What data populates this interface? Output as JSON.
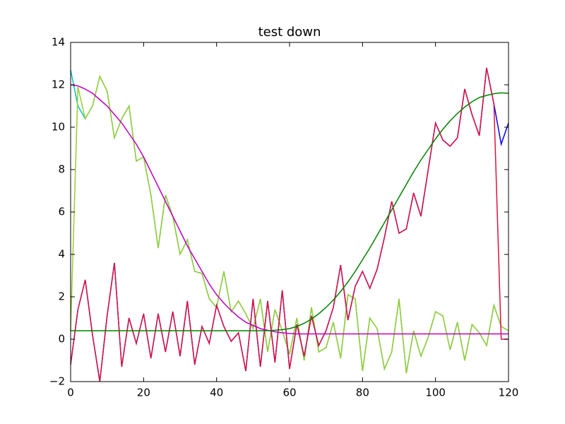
{
  "chart_data": {
    "type": "line",
    "title": "test down",
    "x": [
      0,
      2,
      4,
      6,
      8,
      10,
      12,
      14,
      16,
      18,
      20,
      22,
      24,
      26,
      28,
      30,
      32,
      34,
      36,
      38,
      40,
      42,
      44,
      46,
      48,
      50,
      52,
      54,
      56,
      58,
      60,
      62,
      64,
      66,
      68,
      70,
      72,
      74,
      76,
      78,
      80,
      82,
      84,
      86,
      88,
      90,
      92,
      94,
      96,
      98,
      100,
      102,
      104,
      106,
      108,
      110,
      112,
      114,
      116,
      118,
      120
    ],
    "series": [
      {
        "color": "#00bfbf",
        "values": [
          12.7,
          11.0,
          10.4,
          11.0,
          12.4,
          11.7,
          9.5,
          10.4,
          11.0,
          8.4,
          8.6,
          6.8,
          4.3,
          6.8,
          5.8,
          4.0,
          4.7,
          3.2,
          3.1,
          1.9,
          1.5,
          3.2,
          1.3,
          1.8,
          1.2,
          0.5,
          1.9,
          -0.6,
          1.4,
          0.4,
          -0.7,
          1.0,
          -1.0,
          1.5,
          -0.6,
          -0.4,
          0.8,
          -0.9,
          2.1,
          1.9,
          -1.5,
          1.0,
          0.5,
          -1.4,
          -0.6,
          1.9,
          -1.6,
          0.4,
          -0.8,
          0.1,
          1.3,
          1.1,
          -0.5,
          0.8,
          -1.0,
          0.7,
          0.3,
          -0.3,
          1.6,
          0.6,
          0.4
        ]
      },
      {
        "color": "#9acd32",
        "values": [
          0.4,
          11.9,
          10.4,
          11.0,
          12.4,
          11.7,
          9.5,
          10.4,
          11.0,
          8.4,
          8.6,
          6.8,
          4.3,
          6.8,
          5.8,
          4.0,
          4.7,
          3.2,
          3.1,
          1.9,
          1.5,
          3.2,
          1.3,
          1.8,
          1.2,
          0.5,
          1.9,
          -0.6,
          1.4,
          0.4,
          -0.7,
          1.0,
          -1.0,
          1.5,
          -0.6,
          -0.4,
          0.8,
          -0.9,
          2.1,
          1.9,
          -1.5,
          1.0,
          0.5,
          -1.4,
          -0.6,
          1.9,
          -1.6,
          0.4,
          -0.8,
          0.1,
          1.3,
          1.1,
          -0.5,
          0.8,
          -1.0,
          0.7,
          0.3,
          -0.3,
          1.6,
          0.6,
          0.4
        ]
      },
      {
        "color": "#0000ff",
        "values": [
          -1.2,
          1.4,
          2.8,
          0.2,
          -2.0,
          1.1,
          3.6,
          -1.3,
          1.0,
          -0.2,
          1.2,
          -0.9,
          1.2,
          -0.6,
          1.3,
          -0.8,
          1.8,
          -1.2,
          0.6,
          -0.2,
          1.6,
          0.6,
          -0.1,
          0.3,
          -1.5,
          1.9,
          -1.3,
          1.8,
          -1.1,
          2.3,
          -1.4,
          0.7,
          -0.8,
          1.1,
          -0.3,
          0.4,
          1.5,
          3.5,
          0.9,
          2.5,
          3.2,
          2.4,
          3.3,
          4.8,
          6.5,
          5.0,
          5.2,
          6.9,
          5.8,
          8.0,
          10.2,
          9.4,
          9.1,
          9.5,
          11.8,
          10.6,
          9.6,
          12.8,
          11.1,
          9.2,
          10.2
        ]
      },
      {
        "color": "#dc143c",
        "values": [
          -1.2,
          1.4,
          2.8,
          0.2,
          -2.0,
          1.1,
          3.6,
          -1.3,
          1.0,
          -0.2,
          1.2,
          -0.9,
          1.2,
          -0.6,
          1.3,
          -0.8,
          1.8,
          -1.2,
          0.6,
          -0.2,
          1.6,
          0.6,
          -0.1,
          0.3,
          -1.5,
          1.9,
          -1.3,
          1.8,
          -1.1,
          2.3,
          -1.4,
          0.7,
          -0.8,
          1.1,
          -0.3,
          0.4,
          1.5,
          3.5,
          0.9,
          2.5,
          3.2,
          2.4,
          3.3,
          4.8,
          6.5,
          5.0,
          5.2,
          6.9,
          5.8,
          8.0,
          10.2,
          9.4,
          9.1,
          9.5,
          11.8,
          10.6,
          9.6,
          12.8,
          11.1,
          0.0,
          0.0
        ]
      },
      {
        "color": "#bf00bf",
        "values": [
          12.0,
          11.95,
          11.8,
          11.6,
          11.3,
          11.0,
          10.6,
          10.2,
          9.7,
          9.2,
          8.6,
          7.9,
          7.2,
          6.5,
          5.8,
          5.1,
          4.4,
          3.8,
          3.2,
          2.6,
          2.1,
          1.7,
          1.35,
          1.05,
          0.8,
          0.65,
          0.5,
          0.42,
          0.35,
          0.3,
          0.27,
          0.25,
          0.25,
          0.25,
          0.25,
          0.25,
          0.25,
          0.25,
          0.25,
          0.25,
          0.25,
          0.25,
          0.25,
          0.25,
          0.25,
          0.25,
          0.25,
          0.25,
          0.25,
          0.25,
          0.25,
          0.25,
          0.25,
          0.25,
          0.25,
          0.25,
          0.25,
          0.25,
          0.25,
          0.25,
          0.25
        ]
      },
      {
        "color": "#008000",
        "values": [
          0.4,
          0.4,
          0.4,
          0.4,
          0.4,
          0.4,
          0.4,
          0.4,
          0.4,
          0.4,
          0.4,
          0.4,
          0.4,
          0.4,
          0.4,
          0.4,
          0.4,
          0.4,
          0.4,
          0.4,
          0.4,
          0.4,
          0.4,
          0.4,
          0.4,
          0.4,
          0.4,
          0.4,
          0.42,
          0.45,
          0.5,
          0.6,
          0.75,
          0.95,
          1.2,
          1.5,
          1.85,
          2.25,
          2.7,
          3.2,
          3.75,
          4.3,
          4.9,
          5.5,
          6.1,
          6.7,
          7.3,
          7.9,
          8.45,
          8.95,
          9.45,
          9.9,
          10.3,
          10.65,
          10.95,
          11.2,
          11.4,
          11.5,
          11.58,
          11.62,
          11.6
        ]
      }
    ],
    "xlim": [
      0,
      120
    ],
    "ylim": [
      -2,
      14
    ],
    "xticks": [
      0,
      20,
      40,
      60,
      80,
      100,
      120
    ],
    "yticks": [
      {
        "value": -2,
        "label": "−2"
      },
      0,
      2,
      4,
      6,
      8,
      10,
      12,
      14
    ]
  }
}
